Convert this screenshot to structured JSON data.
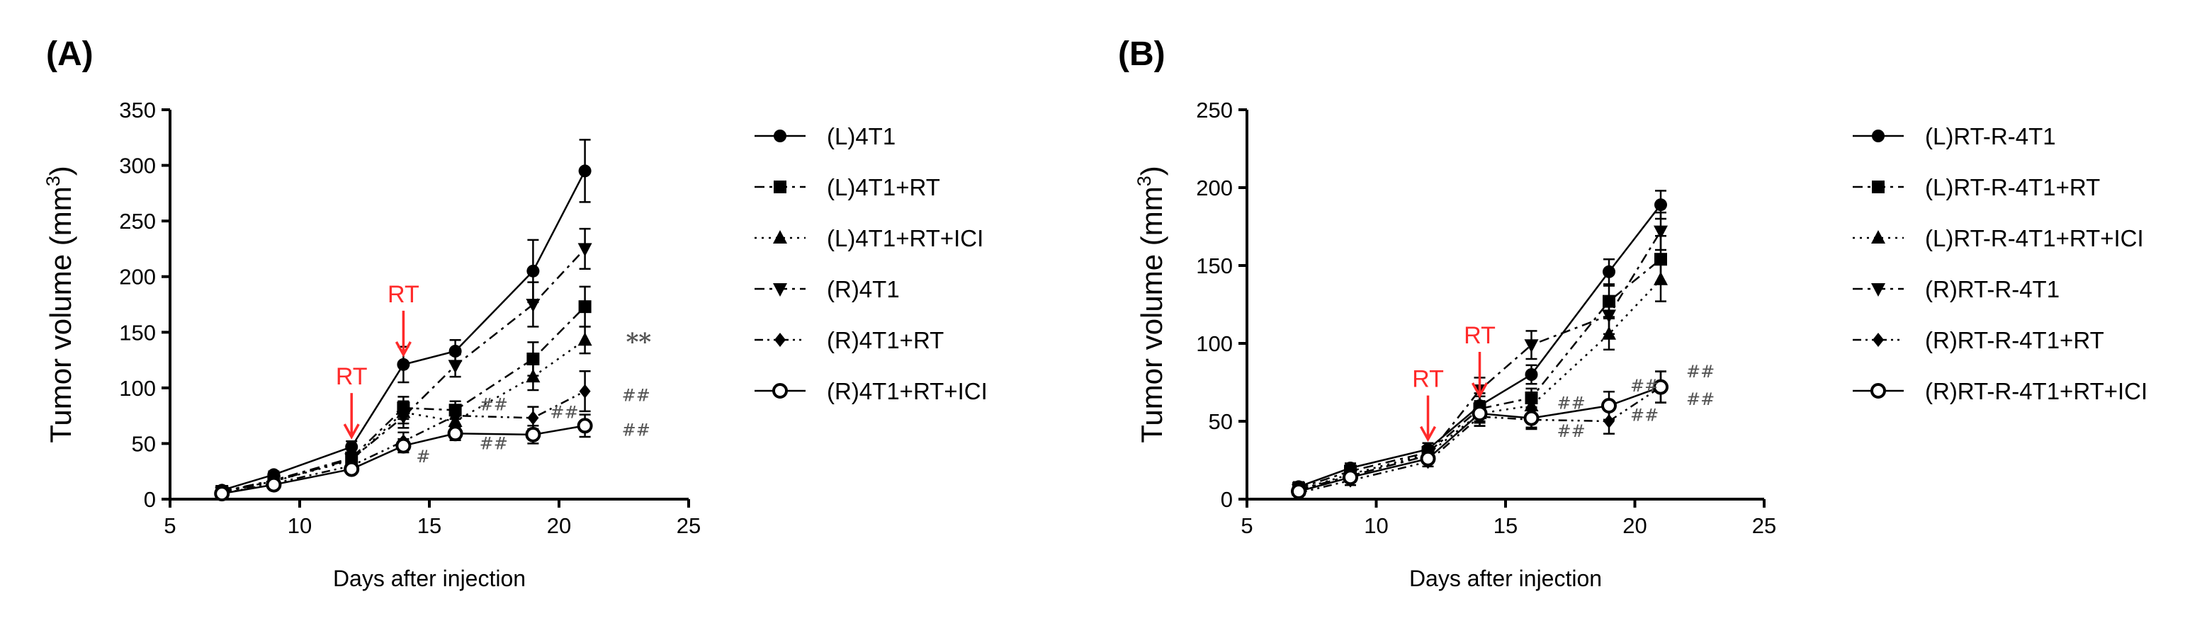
{
  "chart_data": [
    {
      "type": "line",
      "panel_label": "(A)",
      "title": "",
      "xlabel": "Days after injection",
      "ylabel_prefix": "Tumor volume (mm",
      "ylabel_sup": "3",
      "ylabel_suffix": ")",
      "xlim": [
        5,
        25
      ],
      "ylim": [
        0,
        350
      ],
      "xticks": [
        5,
        10,
        15,
        20,
        25
      ],
      "yticks": [
        0,
        50,
        100,
        150,
        200,
        250,
        300,
        350
      ],
      "x": [
        7,
        9,
        12,
        14,
        16,
        19,
        21
      ],
      "series": [
        {
          "name": "(L)4T1",
          "marker": "circle",
          "dash": "solid",
          "values": [
            8,
            22,
            47,
            121,
            133,
            205,
            295
          ],
          "errors": [
            3,
            3,
            5,
            16,
            10,
            28,
            28
          ]
        },
        {
          "name": "(L)4T1+RT",
          "marker": "square",
          "dash": "dashdot",
          "values": [
            7,
            17,
            37,
            82,
            80,
            126,
            173
          ],
          "errors": [
            3,
            3,
            5,
            10,
            8,
            15,
            18
          ]
        },
        {
          "name": "(L)4T1+RT+ICI",
          "marker": "triangle-up",
          "dash": "dotted",
          "values": [
            7,
            16,
            35,
            78,
            70,
            110,
            143
          ],
          "errors": [
            3,
            3,
            5,
            10,
            8,
            12,
            12
          ]
        },
        {
          "name": "(R)4T1",
          "marker": "triangle-down",
          "dash": "dashdot",
          "values": [
            6,
            16,
            36,
            74,
            120,
            175,
            225
          ],
          "errors": [
            3,
            3,
            5,
            10,
            10,
            20,
            18
          ]
        },
        {
          "name": "(R)4T1+RT",
          "marker": "diamond",
          "dash": "dashdotdot",
          "values": [
            5,
            14,
            30,
            52,
            75,
            73,
            97
          ],
          "errors": [
            2,
            3,
            4,
            8,
            8,
            10,
            18
          ]
        },
        {
          "name": "(R)4T1+RT+ICI",
          "marker": "open-circle",
          "dash": "solid",
          "values": [
            5,
            13,
            27,
            48,
            59,
            58,
            66
          ],
          "errors": [
            2,
            3,
            4,
            6,
            6,
            8,
            10
          ]
        }
      ],
      "annotations": [
        {
          "text": "RT",
          "x": 12,
          "y": 47,
          "type": "arrow"
        },
        {
          "text": "RT",
          "x": 14,
          "y": 121,
          "type": "arrow"
        },
        {
          "text": "**",
          "x": 21,
          "y": 143,
          "type": "sig"
        },
        {
          "text": "##",
          "x": 21,
          "y": 97,
          "type": "sig"
        },
        {
          "text": "##",
          "x": 21,
          "y": 66,
          "type": "sig"
        },
        {
          "text": "##",
          "x": 16,
          "y": 80,
          "type": "sig"
        },
        {
          "text": "##",
          "x": 16,
          "y": 45,
          "type": "sig"
        },
        {
          "text": "##",
          "x": 19,
          "y": 73,
          "type": "sig"
        },
        {
          "text": "#",
          "x": 14,
          "y": 33,
          "type": "sig"
        }
      ]
    },
    {
      "type": "line",
      "panel_label": "(B)",
      "title": "",
      "xlabel": "Days after injection",
      "ylabel_prefix": "Tumor volume (mm",
      "ylabel_sup": "3",
      "ylabel_suffix": ")",
      "xlim": [
        5,
        25
      ],
      "ylim": [
        0,
        250
      ],
      "xticks": [
        5,
        10,
        15,
        20,
        25
      ],
      "yticks": [
        0,
        50,
        100,
        150,
        200,
        250
      ],
      "x": [
        7,
        9,
        12,
        14,
        16,
        19,
        21
      ],
      "series": [
        {
          "name": "(L)RT-R-4T1",
          "marker": "circle",
          "dash": "solid",
          "values": [
            8,
            20,
            32,
            60,
            80,
            146,
            189
          ],
          "errors": [
            3,
            3,
            4,
            8,
            6,
            8,
            9
          ]
        },
        {
          "name": "(L)RT-R-4T1+RT",
          "marker": "square",
          "dash": "dashdot",
          "values": [
            7,
            18,
            30,
            58,
            65,
            127,
            154
          ],
          "errors": [
            3,
            3,
            4,
            8,
            6,
            10,
            15
          ]
        },
        {
          "name": "(L)RT-R-4T1+RT+ICI",
          "marker": "triangle-up",
          "dash": "dotted",
          "values": [
            6,
            16,
            29,
            55,
            60,
            106,
            141
          ],
          "errors": [
            3,
            3,
            4,
            8,
            6,
            10,
            14
          ]
        },
        {
          "name": "(R)RT-R-4T1",
          "marker": "triangle-down",
          "dash": "dashdot",
          "values": [
            6,
            15,
            28,
            70,
            99,
            118,
            172
          ],
          "errors": [
            3,
            3,
            4,
            8,
            9,
            12,
            12
          ]
        },
        {
          "name": "(R)RT-R-4T1+RT",
          "marker": "diamond",
          "dash": "dashdotdot",
          "values": [
            4,
            12,
            24,
            53,
            51,
            50,
            72
          ],
          "errors": [
            2,
            3,
            3,
            6,
            6,
            8,
            10
          ]
        },
        {
          "name": "(R)RT-R-4T1+RT+ICI",
          "marker": "open-circle",
          "dash": "solid",
          "values": [
            5,
            14,
            26,
            55,
            52,
            60,
            72
          ],
          "errors": [
            2,
            3,
            3,
            6,
            6,
            9,
            10
          ]
        }
      ],
      "annotations": [
        {
          "text": "RT",
          "x": 12,
          "y": 32,
          "type": "arrow"
        },
        {
          "text": "RT",
          "x": 14,
          "y": 60,
          "type": "arrow"
        },
        {
          "text": "##",
          "x": 21,
          "y": 81,
          "type": "sig"
        },
        {
          "text": "##",
          "x": 21,
          "y": 66,
          "type": "sig"
        },
        {
          "text": "##",
          "x": 16,
          "y": 58,
          "type": "sig"
        },
        {
          "text": "##",
          "x": 16,
          "y": 40,
          "type": "sig"
        },
        {
          "text": "##",
          "x": 19,
          "y": 70,
          "type": "sig"
        },
        {
          "text": "##",
          "x": 19,
          "y": 53,
          "type": "sig"
        }
      ]
    }
  ],
  "colors": {
    "ink": "#000000",
    "rt_annotation": "#ff2a2a",
    "significance": "#555555",
    "background": "#ffffff"
  }
}
